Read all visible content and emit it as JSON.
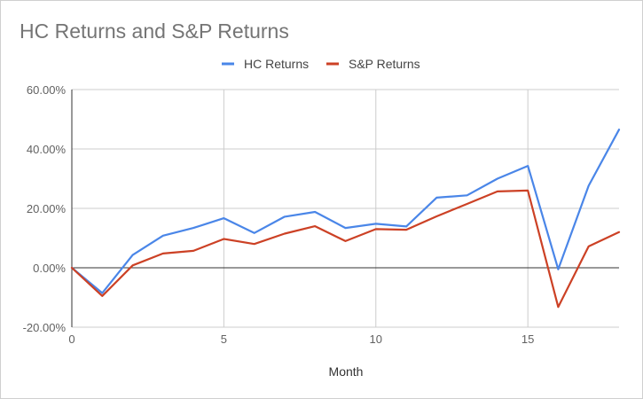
{
  "chart_data": {
    "type": "line",
    "title": "HC Returns and S&P Returns",
    "xlabel": "Month",
    "ylabel": "",
    "x": [
      0,
      1,
      2,
      3,
      4,
      5,
      6,
      7,
      8,
      9,
      10,
      11,
      12,
      13,
      14,
      15,
      16,
      17,
      18
    ],
    "xlim": [
      0,
      18
    ],
    "ylim": [
      -20,
      60
    ],
    "x_ticks": [
      0,
      5,
      10,
      15
    ],
    "y_ticks": [
      -20,
      0,
      20,
      40,
      60
    ],
    "x_tick_labels": [
      "0",
      "5",
      "10",
      "15"
    ],
    "y_tick_labels": [
      "-20.00%",
      "0.00%",
      "20.00%",
      "40.00%",
      "60.00%"
    ],
    "grid": true,
    "legend_position": "top",
    "series": [
      {
        "name": "HC Returns",
        "color": "#4a86e8",
        "values": [
          0,
          -8.5,
          4.3,
          10.8,
          13.4,
          16.7,
          11.7,
          17.2,
          18.8,
          13.4,
          14.8,
          13.9,
          23.6,
          24.4,
          30.0,
          34.3,
          -0.5,
          27.6,
          46.5
        ]
      },
      {
        "name": "S&P Returns",
        "color": "#cc4125",
        "values": [
          0,
          -9.5,
          0.8,
          4.8,
          5.7,
          9.7,
          8.0,
          11.5,
          14.0,
          9.0,
          13.0,
          12.8,
          17.3,
          21.5,
          25.7,
          26.0,
          -13.2,
          7.2,
          12.0
        ]
      }
    ]
  }
}
